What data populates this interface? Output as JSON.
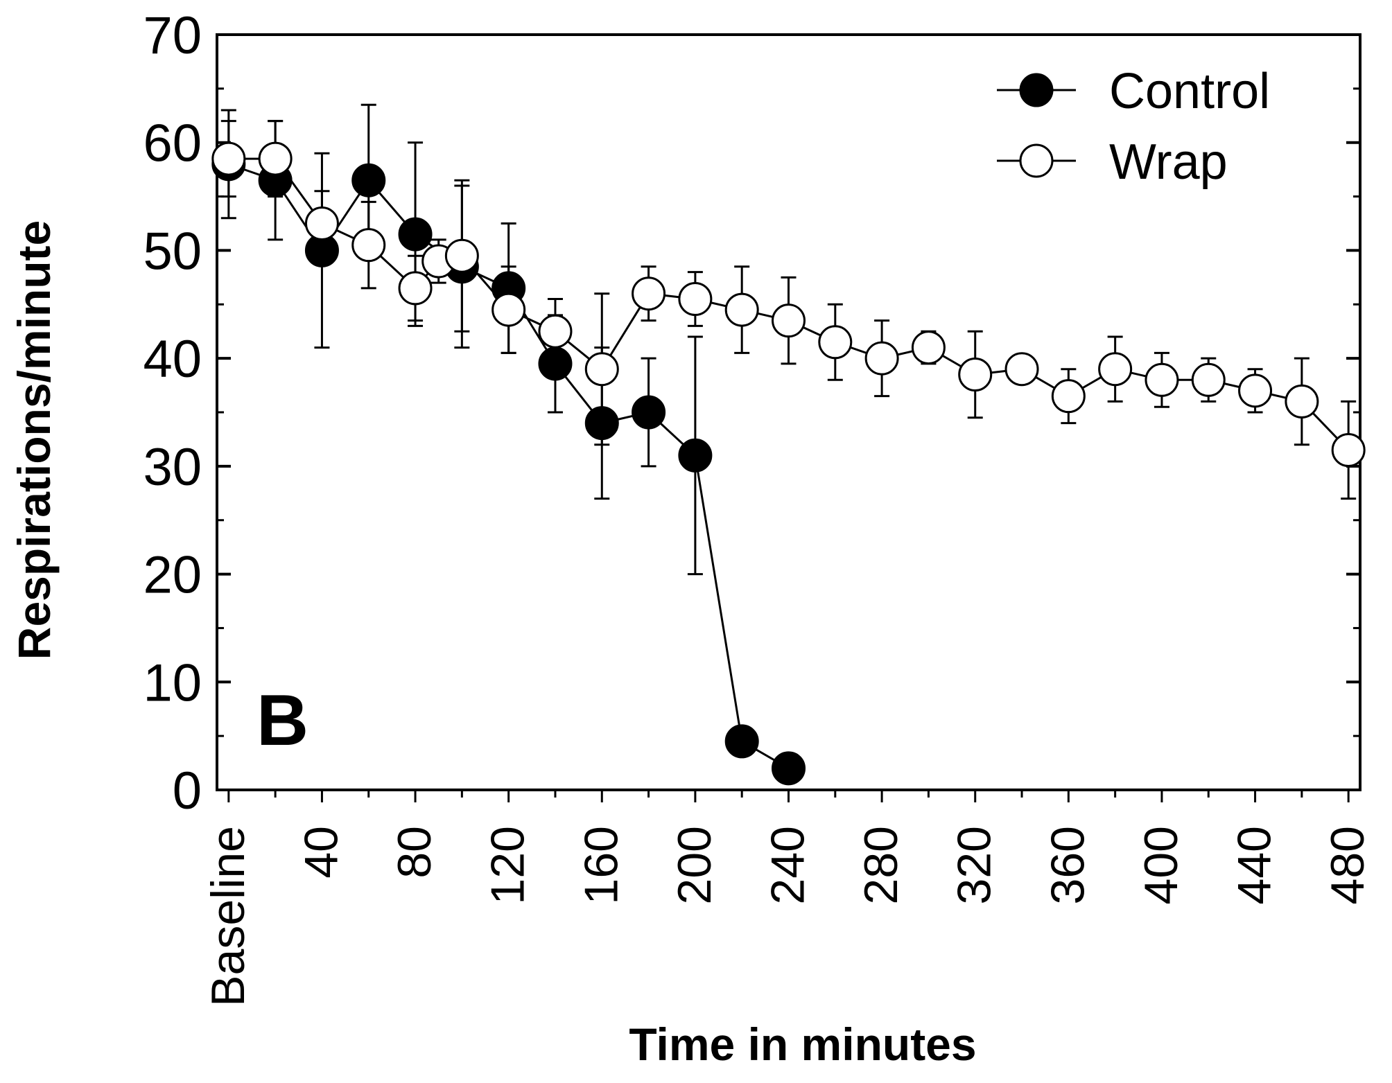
{
  "chart_data": {
    "type": "line",
    "panel_label": "B",
    "title": "",
    "xlabel": "Time in minutes",
    "ylabel": "Respirations/minute",
    "ylim": [
      0,
      70
    ],
    "xlim": [
      -5,
      485
    ],
    "y_ticks": [
      0,
      10,
      20,
      30,
      40,
      50,
      60,
      70
    ],
    "x_ticks": [
      {
        "value": 0,
        "label": "Baseline"
      },
      {
        "value": 40,
        "label": "40"
      },
      {
        "value": 80,
        "label": "80"
      },
      {
        "value": 120,
        "label": "120"
      },
      {
        "value": 160,
        "label": "160"
      },
      {
        "value": 200,
        "label": "200"
      },
      {
        "value": 240,
        "label": "240"
      },
      {
        "value": 280,
        "label": "280"
      },
      {
        "value": 320,
        "label": "320"
      },
      {
        "value": 360,
        "label": "360"
      },
      {
        "value": 400,
        "label": "400"
      },
      {
        "value": 440,
        "label": "440"
      },
      {
        "value": 480,
        "label": "480"
      }
    ],
    "grid": false,
    "legend_position": "top-right",
    "series": [
      {
        "name": "Control",
        "marker": "filled-circle",
        "color": "#000000",
        "points": [
          {
            "x": 0,
            "y": 58,
            "err": 5
          },
          {
            "x": 20,
            "y": 56.5,
            "err": 5.5
          },
          {
            "x": 40,
            "y": 50,
            "err": 9
          },
          {
            "x": 60,
            "y": 56.5,
            "err": 7
          },
          {
            "x": 80,
            "y": 51.5,
            "err": 8.5
          },
          {
            "x": 100,
            "y": 48.5,
            "err": 7.5
          },
          {
            "x": 120,
            "y": 46.5,
            "err": 6
          },
          {
            "x": 140,
            "y": 39.5,
            "err": 4.5
          },
          {
            "x": 160,
            "y": 34,
            "err": 7
          },
          {
            "x": 180,
            "y": 35,
            "err": 5
          },
          {
            "x": 200,
            "y": 31,
            "err": 11
          },
          {
            "x": 220,
            "y": 4.5,
            "err": 0
          },
          {
            "x": 240,
            "y": 2,
            "err": 0
          }
        ]
      },
      {
        "name": "Wrap",
        "marker": "open-circle",
        "color": "#000000",
        "points": [
          {
            "x": 0,
            "y": 58.5,
            "err": 3.5
          },
          {
            "x": 20,
            "y": 58.5,
            "err": 3.5
          },
          {
            "x": 40,
            "y": 52.5,
            "err": 3
          },
          {
            "x": 60,
            "y": 50.5,
            "err": 4
          },
          {
            "x": 80,
            "y": 46.5,
            "err": 3
          },
          {
            "x": 90,
            "y": 49,
            "err": 2
          },
          {
            "x": 100,
            "y": 49.5,
            "err": 7
          },
          {
            "x": 120,
            "y": 44.5,
            "err": 4
          },
          {
            "x": 140,
            "y": 42.5,
            "err": 3
          },
          {
            "x": 160,
            "y": 39,
            "err": 7
          },
          {
            "x": 180,
            "y": 46,
            "err": 2.5
          },
          {
            "x": 200,
            "y": 45.5,
            "err": 2.5
          },
          {
            "x": 220,
            "y": 44.5,
            "err": 4
          },
          {
            "x": 240,
            "y": 43.5,
            "err": 4
          },
          {
            "x": 260,
            "y": 41.5,
            "err": 3.5
          },
          {
            "x": 280,
            "y": 40,
            "err": 3.5
          },
          {
            "x": 300,
            "y": 41,
            "err": 1.5
          },
          {
            "x": 320,
            "y": 38.5,
            "err": 4
          },
          {
            "x": 340,
            "y": 39,
            "err": 0.5
          },
          {
            "x": 360,
            "y": 36.5,
            "err": 2.5
          },
          {
            "x": 380,
            "y": 39,
            "err": 3
          },
          {
            "x": 400,
            "y": 38,
            "err": 2.5
          },
          {
            "x": 420,
            "y": 38,
            "err": 2
          },
          {
            "x": 440,
            "y": 37,
            "err": 2
          },
          {
            "x": 460,
            "y": 36,
            "err": 4
          },
          {
            "x": 480,
            "y": 31.5,
            "err": 4.5
          }
        ]
      }
    ]
  }
}
